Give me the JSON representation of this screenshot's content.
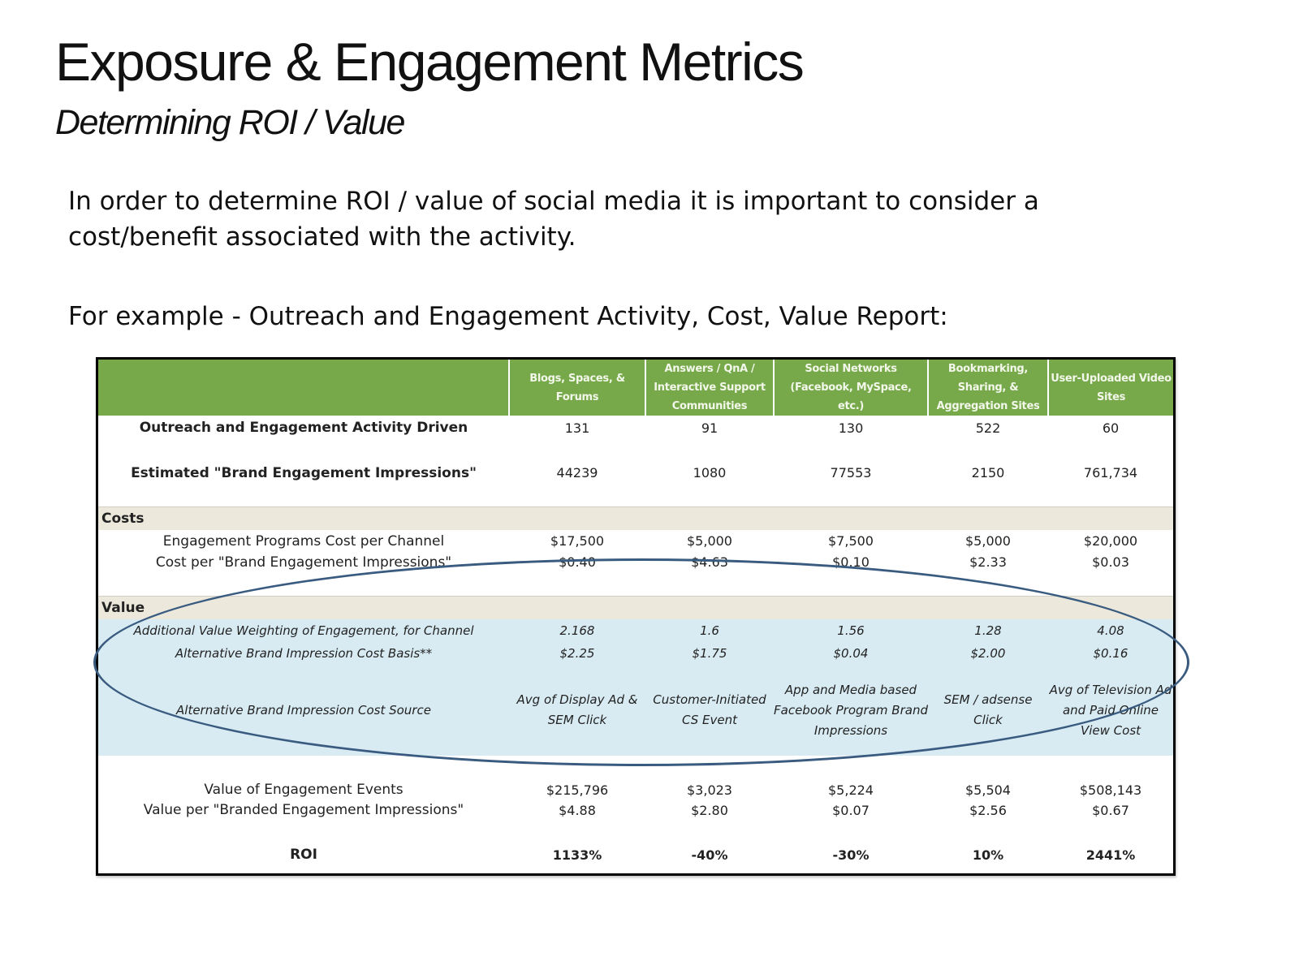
{
  "slide": {
    "title": "Exposure & Engagement Metrics",
    "subtitle": "Determining ROI / Value",
    "intro": "In order to determine ROI / value of social media it is important to consider a cost/benefit associated with the activity.",
    "example": "For example - Outreach and Engagement Activity, Cost, Value Report:"
  },
  "colors": {
    "header_green": "#77a94a",
    "section_beige": "#ece9dc",
    "value_blue": "#d8ebf3",
    "oval_stroke": "#3a5b80"
  },
  "report": {
    "channels": [
      "Blogs, Spaces, & Forums",
      "Answers / QnA / Interactive Support Communities",
      "Social Networks (Facebook, MySpace, etc.)",
      "Bookmarking, Sharing, & Aggregation Sites",
      "User-Uploaded Video Sites"
    ],
    "activity": {
      "label": "Outreach and Engagement Activity Driven",
      "values": [
        "131",
        "91",
        "130",
        "522",
        "60"
      ]
    },
    "impressions": {
      "label": "Estimated \"Brand Engagement Impressions\"",
      "values": [
        "44239",
        "1080",
        "77553",
        "2150",
        "761,734"
      ]
    },
    "costs_section": "Costs",
    "program_cost": {
      "label": "Engagement Programs Cost per Channel",
      "values": [
        "$17,500",
        "$5,000",
        "$7,500",
        "$5,000",
        "$20,000"
      ]
    },
    "cost_per_impression": {
      "label": "Cost per \"Brand Engagement Impressions\"",
      "values": [
        "$0.40",
        "$4.63",
        "$0.10",
        "$2.33",
        "$0.03"
      ]
    },
    "value_section": "Value",
    "weighting": {
      "label": "Additional Value Weighting of Engagement, for Channel",
      "values": [
        "2.168",
        "1.6",
        "1.56",
        "1.28",
        "4.08"
      ]
    },
    "alt_cost_basis": {
      "label": "Alternative Brand Impression Cost Basis**",
      "values": [
        "$2.25",
        "$1.75",
        "$0.04",
        "$2.00",
        "$0.16"
      ]
    },
    "alt_cost_source": {
      "label": "Alternative Brand Impression Cost Source",
      "values": [
        "Avg of Display Ad & SEM Click",
        "Customer-Initiated CS Event",
        "App and Media based Facebook Program Brand Impressions",
        "SEM / adsense Click",
        "Avg of Television Ad and Paid Online View Cost"
      ]
    },
    "value_events": {
      "label": "Value of Engagement Events",
      "values": [
        "$215,796",
        "$3,023",
        "$5,224",
        "$5,504",
        "$508,143"
      ]
    },
    "value_per_impression": {
      "label": "Value per \"Branded Engagement Impressions\"",
      "values": [
        "$4.88",
        "$2.80",
        "$0.07",
        "$2.56",
        "$0.67"
      ]
    },
    "roi": {
      "label": "ROI",
      "values": [
        "1133%",
        "-40%",
        "-30%",
        "10%",
        "2441%"
      ]
    }
  }
}
